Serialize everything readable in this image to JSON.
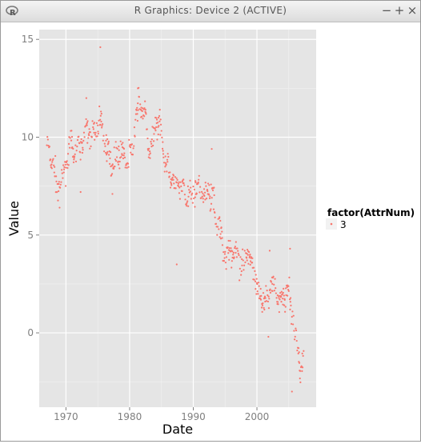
{
  "window": {
    "title": "R Graphics: Device 2 (ACTIVE)",
    "minimize_label": "−",
    "maximize_label": "+",
    "close_label": "×",
    "app_icon": "r-logo-icon"
  },
  "chart_data": {
    "type": "scatter",
    "title": "",
    "xlabel": "Date",
    "ylabel": "Value",
    "xlim": [
      1965.8,
      2009.3
    ],
    "ylim": [
      -3.8,
      15.5
    ],
    "x_ticks": [
      1970,
      1980,
      1990,
      2000
    ],
    "x_tick_labels": [
      "1970",
      "1980",
      "1990",
      "2000"
    ],
    "y_ticks": [
      0,
      5,
      10,
      15
    ],
    "y_tick_labels": [
      "0",
      "5",
      "10",
      "15"
    ],
    "grid": true,
    "background_color": "#e5e5e5",
    "grid_color": "#ffffff",
    "point_color": "#f8766d",
    "legend": {
      "title": "factor(AttrNum)",
      "entries": [
        "3"
      ],
      "placement": "right"
    },
    "trend": [
      [
        1967.0,
        9.5
      ],
      [
        1968.0,
        9.0
      ],
      [
        1968.6,
        7.6
      ],
      [
        1969.2,
        7.2
      ],
      [
        1970.0,
        8.6
      ],
      [
        1970.8,
        9.9
      ],
      [
        1971.5,
        9.3
      ],
      [
        1972.5,
        9.4
      ],
      [
        1973.5,
        10.6
      ],
      [
        1974.5,
        10.3
      ],
      [
        1975.5,
        10.4
      ],
      [
        1976.5,
        9.3
      ],
      [
        1977.5,
        8.9
      ],
      [
        1978.5,
        8.9
      ],
      [
        1979.5,
        9.0
      ],
      [
        1980.5,
        9.8
      ],
      [
        1981.5,
        11.4
      ],
      [
        1982.4,
        11.2
      ],
      [
        1983.2,
        9.4
      ],
      [
        1984.2,
        10.6
      ],
      [
        1985.2,
        9.7
      ],
      [
        1986.2,
        8.5
      ],
      [
        1987.2,
        7.2
      ],
      [
        1988.2,
        7.3
      ],
      [
        1989.2,
        7.2
      ],
      [
        1990.2,
        7.0
      ],
      [
        1991.2,
        7.2
      ],
      [
        1992.2,
        7.5
      ],
      [
        1993.0,
        7.0
      ],
      [
        1993.5,
        5.6
      ],
      [
        1994.5,
        4.9
      ],
      [
        1995.5,
        4.2
      ],
      [
        1996.5,
        3.8
      ],
      [
        1997.5,
        3.6
      ],
      [
        1998.5,
        4.1
      ],
      [
        1999.5,
        2.9
      ],
      [
        2000.5,
        2.0
      ],
      [
        2001.5,
        1.6
      ],
      [
        2002.3,
        2.2
      ],
      [
        2003.2,
        1.9
      ],
      [
        2004.2,
        2.1
      ],
      [
        2005.0,
        1.9
      ],
      [
        2005.6,
        0.5
      ],
      [
        2006.2,
        -0.4
      ],
      [
        2006.8,
        -1.2
      ],
      [
        2007.4,
        -1.1
      ]
    ],
    "spread": 0.45,
    "outliers": [
      {
        "x": 1975.4,
        "y": 14.6
      },
      {
        "x": 1973.2,
        "y": 12.0
      },
      {
        "x": 1981.3,
        "y": 12.5
      },
      {
        "x": 1987.4,
        "y": 3.5
      },
      {
        "x": 1992.9,
        "y": 9.4
      },
      {
        "x": 2001.8,
        "y": -0.2
      },
      {
        "x": 2005.2,
        "y": 4.3
      },
      {
        "x": 2005.5,
        "y": -3.0
      },
      {
        "x": 1977.3,
        "y": 7.1
      },
      {
        "x": 1972.3,
        "y": 7.2
      },
      {
        "x": 1969.0,
        "y": 6.4
      },
      {
        "x": 2002.0,
        "y": 4.2
      }
    ]
  }
}
